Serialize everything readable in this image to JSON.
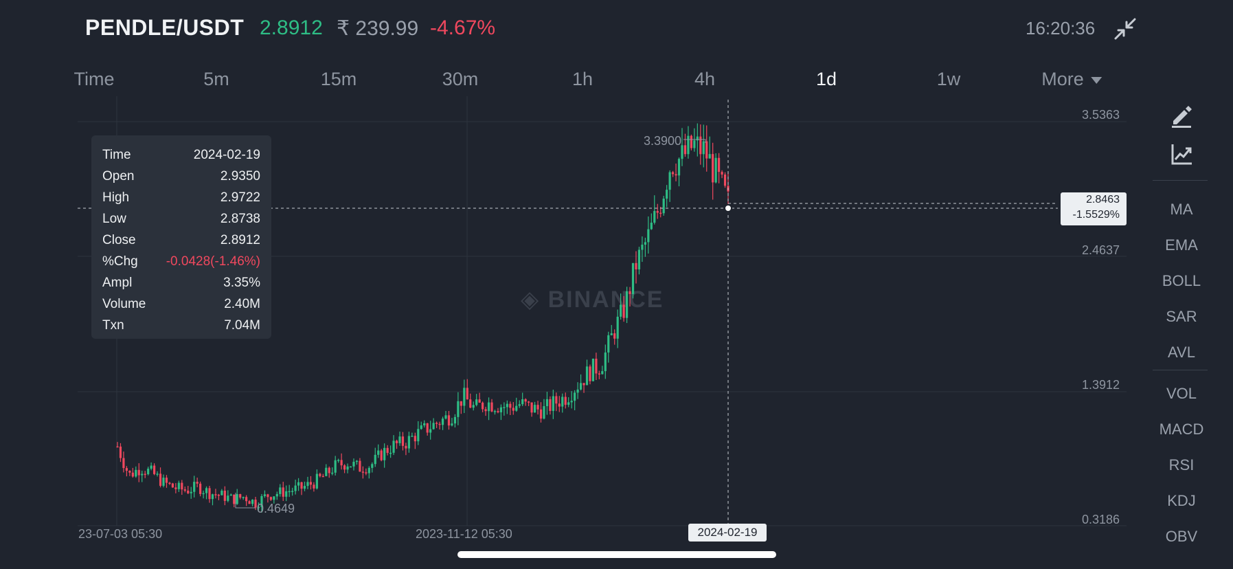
{
  "header": {
    "pair": "PENDLE/USDT",
    "price": "2.8912",
    "inr_price": "₹ 239.99",
    "change_pct": "-4.67%",
    "time": "16:20:36",
    "collapse_icon": "collapse-arrows-icon"
  },
  "intervals": [
    {
      "label": "Time"
    },
    {
      "label": "5m"
    },
    {
      "label": "15m"
    },
    {
      "label": "30m"
    },
    {
      "label": "1h"
    },
    {
      "label": "4h"
    },
    {
      "label": "1d",
      "active": true
    },
    {
      "label": "1w"
    },
    {
      "label": "More"
    }
  ],
  "tooltip": {
    "rows": [
      {
        "key": "Time",
        "value": "2024-02-19"
      },
      {
        "key": "Open",
        "value": "2.9350"
      },
      {
        "key": "High",
        "value": "2.9722"
      },
      {
        "key": "Low",
        "value": "2.8738"
      },
      {
        "key": "Close",
        "value": "2.8912"
      },
      {
        "key": "%Chg",
        "value": "-0.0428(-1.46%)",
        "negative": true
      },
      {
        "key": "Ampl",
        "value": "3.35%"
      },
      {
        "key": "Volume",
        "value": "2.40M"
      },
      {
        "key": "Txn",
        "value": "7.04M"
      }
    ]
  },
  "chart_data": {
    "type": "candlestick",
    "y_ticks": [
      "3.5363",
      "2.4637",
      "1.3912",
      "0.3186"
    ],
    "x_ticks": [
      "23-07-03 05:30",
      "2023-11-12 05:30"
    ],
    "high_label": "3.3900",
    "low_label": "0.4649",
    "crosshair_price": "2.8463",
    "crosshair_pct": "-1.5529%",
    "crosshair_date": "2024-02-19",
    "ylim": [
      0.3186,
      3.5363
    ],
    "watermark": "BINANCE",
    "colors": {
      "up": "#2ebd85",
      "down": "#f0485e",
      "grid": "#2e343e"
    },
    "close_path": [
      0.95,
      0.72,
      0.78,
      0.74,
      0.66,
      0.62,
      0.6,
      0.63,
      0.58,
      0.56,
      0.53,
      0.55,
      0.5,
      0.56,
      0.58,
      0.6,
      0.62,
      0.66,
      0.72,
      0.8,
      0.82,
      0.78,
      0.8,
      0.9,
      0.96,
      0.98,
      1.05,
      1.1,
      1.15,
      1.2,
      1.35,
      1.25,
      1.3,
      1.28,
      1.26,
      1.29,
      1.25,
      1.24,
      1.3,
      1.35,
      1.45,
      1.55,
      1.6,
      1.85,
      2.05,
      2.4,
      2.6,
      2.85,
      3.2,
      3.25,
      3.35,
      3.3,
      3.1,
      2.89
    ]
  },
  "right_toolbar": {
    "tools": [
      "draw-pen-icon",
      "chart-indicator-icon"
    ],
    "indicators_main": [
      "MA",
      "EMA",
      "BOLL",
      "SAR",
      "AVL"
    ],
    "indicators_sub": [
      "VOL",
      "MACD",
      "RSI",
      "KDJ",
      "OBV"
    ]
  }
}
